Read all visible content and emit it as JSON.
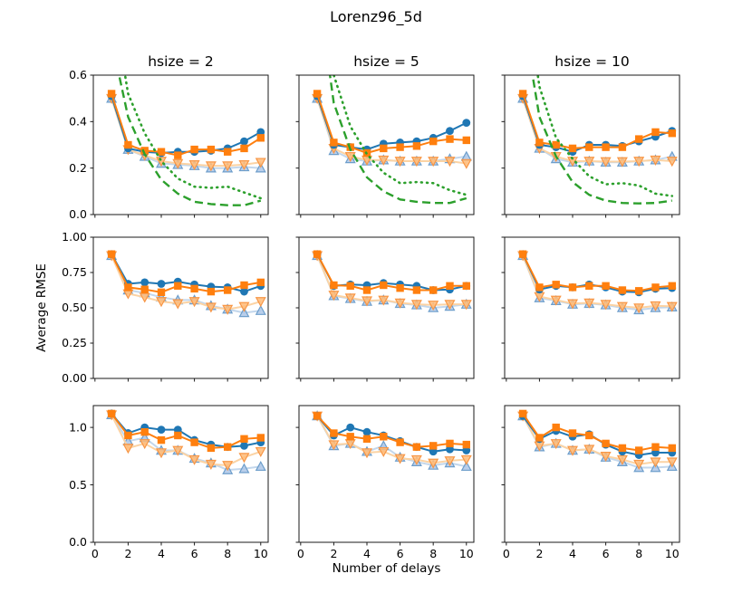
{
  "figure": {
    "title": "Lorenz96_5d"
  },
  "chart_data": {
    "type": "line",
    "title": "Lorenz96_5d",
    "xlabel": "Number of delays",
    "ylabel": "Average RMSE",
    "grid": false,
    "legend": "none",
    "layout": "3x3 subplot grid; columns share x axis (ticks labeled on bottom row only); rows share y axis (ticks labeled on left column only)",
    "col_titles": [
      "hsize = 2",
      "hsize = 5",
      "hsize = 10"
    ],
    "x": [
      1,
      2,
      3,
      4,
      5,
      6,
      7,
      8,
      9,
      10
    ],
    "xlim": [
      -0.1,
      10.45
    ],
    "xticks": [
      0,
      2,
      4,
      6,
      8,
      10
    ],
    "xtick_labels": [
      "0",
      "2",
      "4",
      "6",
      "8",
      "10"
    ],
    "rows": [
      {
        "ylim": [
          0,
          0.6
        ],
        "yticks": [
          0,
          0.2,
          0.4,
          0.6
        ],
        "ytick_labels": [
          "0.0",
          "0.2",
          "0.4",
          "0.6"
        ]
      },
      {
        "ylim": [
          0,
          1.0
        ],
        "yticks": [
          0,
          0.25,
          0.5,
          0.75,
          1.0
        ],
        "ytick_labels": [
          "0.00",
          "0.25",
          "0.50",
          "0.75",
          "1.00"
        ]
      },
      {
        "ylim": [
          0,
          1.19
        ],
        "yticks": [
          0,
          0.5,
          1.0
        ],
        "ytick_labels": [
          "0.0",
          "0.5",
          "1.0"
        ]
      }
    ],
    "series_styles": {
      "blue_circles": {
        "color": "#1f77b4",
        "marker": "circle",
        "line": "solid"
      },
      "orange_squares": {
        "color": "#ff7f0e",
        "marker": "square",
        "line": "solid"
      },
      "lightblue_triangles_up": {
        "color": "#c3d7ec",
        "marker": "triangle-up",
        "marker_fill": "#aec7e8",
        "marker_edge": "#6d9ecb",
        "line": "solid"
      },
      "lightorange_triangles_down": {
        "color": "#fbd3a4",
        "marker": "triangle-down",
        "marker_fill": "#ffbb78",
        "marker_edge": "#f79646",
        "line": "solid"
      },
      "green_dashed": {
        "color": "#2ca02c",
        "marker": "none",
        "line": "dashed"
      },
      "green_dotted": {
        "color": "#2ca02c",
        "marker": "none",
        "line": "dotted"
      }
    },
    "subplots": [
      [
        {
          "row_label": "row1",
          "col_label": "hsize = 2",
          "series": {
            "blue_circles": [
              0.51,
              0.285,
              0.27,
              0.265,
              0.27,
              0.27,
              0.275,
              0.285,
              0.315,
              0.355
            ],
            "orange_squares": [
              0.52,
              0.3,
              0.275,
              0.27,
              0.255,
              0.28,
              0.28,
              0.27,
              0.285,
              0.33
            ],
            "lightblue_triangles_up": [
              0.5,
              0.28,
              0.25,
              0.22,
              0.215,
              0.21,
              0.2,
              0.2,
              0.205,
              0.2
            ],
            "lightorange_triangles_down": [
              0.5,
              0.28,
              0.255,
              0.23,
              0.22,
              0.215,
              0.21,
              0.21,
              0.215,
              0.225
            ],
            "green_dashed": [
              0.75,
              0.42,
              0.26,
              0.15,
              0.09,
              0.055,
              0.045,
              0.04,
              0.04,
              0.06
            ],
            "green_dotted": [
              0.95,
              0.52,
              0.35,
              0.23,
              0.155,
              0.12,
              0.115,
              0.12,
              0.095,
              0.07
            ]
          }
        },
        {
          "row_label": "row1",
          "col_label": "hsize = 5",
          "series": {
            "blue_circles": [
              0.51,
              0.3,
              0.29,
              0.28,
              0.305,
              0.31,
              0.315,
              0.33,
              0.36,
              0.395
            ],
            "orange_squares": [
              0.52,
              0.31,
              0.29,
              0.265,
              0.285,
              0.29,
              0.295,
              0.315,
              0.325,
              0.32
            ],
            "lightblue_triangles_up": [
              0.5,
              0.275,
              0.24,
              0.23,
              0.235,
              0.23,
              0.23,
              0.23,
              0.24,
              0.25
            ],
            "lightorange_triangles_down": [
              0.5,
              0.285,
              0.25,
              0.235,
              0.235,
              0.23,
              0.23,
              0.23,
              0.23,
              0.22
            ],
            "green_dashed": [
              1.0,
              0.48,
              0.28,
              0.16,
              0.1,
              0.065,
              0.055,
              0.05,
              0.05,
              0.07
            ],
            "green_dotted": [
              1.15,
              0.6,
              0.38,
              0.26,
              0.18,
              0.135,
              0.14,
              0.135,
              0.105,
              0.085
            ]
          }
        },
        {
          "row_label": "row1",
          "col_label": "hsize = 10",
          "series": {
            "blue_circles": [
              0.51,
              0.3,
              0.29,
              0.27,
              0.3,
              0.3,
              0.295,
              0.315,
              0.335,
              0.36
            ],
            "orange_squares": [
              0.52,
              0.31,
              0.3,
              0.285,
              0.29,
              0.29,
              0.29,
              0.325,
              0.355,
              0.35
            ],
            "lightblue_triangles_up": [
              0.5,
              0.285,
              0.24,
              0.225,
              0.23,
              0.225,
              0.225,
              0.23,
              0.235,
              0.25
            ],
            "lightorange_triangles_down": [
              0.5,
              0.285,
              0.25,
              0.23,
              0.23,
              0.228,
              0.228,
              0.23,
              0.235,
              0.23
            ],
            "green_dashed": [
              0.85,
              0.42,
              0.25,
              0.14,
              0.085,
              0.06,
              0.05,
              0.048,
              0.05,
              0.06
            ],
            "green_dotted": [
              1.05,
              0.55,
              0.33,
              0.24,
              0.165,
              0.13,
              0.135,
              0.125,
              0.09,
              0.08
            ]
          }
        }
      ],
      [
        {
          "row_label": "row2",
          "col_label": "hsize = 2",
          "series": {
            "blue_circles": [
              0.88,
              0.67,
              0.68,
              0.67,
              0.685,
              0.665,
              0.65,
              0.645,
              0.615,
              0.655
            ],
            "orange_squares": [
              0.88,
              0.645,
              0.63,
              0.61,
              0.655,
              0.635,
              0.615,
              0.625,
              0.66,
              0.68
            ],
            "lightblue_triangles_up": [
              0.87,
              0.625,
              0.605,
              0.575,
              0.555,
              0.555,
              0.515,
              0.49,
              0.465,
              0.48
            ],
            "lightorange_triangles_down": [
              0.87,
              0.6,
              0.575,
              0.545,
              0.53,
              0.545,
              0.505,
              0.49,
              0.51,
              0.545
            ]
          }
        },
        {
          "row_label": "row2",
          "col_label": "hsize = 5",
          "series": {
            "blue_circles": [
              0.88,
              0.655,
              0.665,
              0.66,
              0.675,
              0.665,
              0.655,
              0.625,
              0.63,
              0.655
            ],
            "orange_squares": [
              0.88,
              0.66,
              0.655,
              0.625,
              0.66,
              0.64,
              0.625,
              0.625,
              0.655,
              0.655
            ],
            "lightblue_triangles_up": [
              0.87,
              0.585,
              0.565,
              0.545,
              0.555,
              0.53,
              0.52,
              0.5,
              0.51,
              0.525
            ],
            "lightorange_triangles_down": [
              0.87,
              0.59,
              0.57,
              0.55,
              0.555,
              0.535,
              0.525,
              0.52,
              0.525,
              0.525
            ]
          }
        },
        {
          "row_label": "row2",
          "col_label": "hsize = 10",
          "series": {
            "blue_circles": [
              0.88,
              0.63,
              0.655,
              0.645,
              0.665,
              0.645,
              0.615,
              0.61,
              0.635,
              0.64
            ],
            "orange_squares": [
              0.88,
              0.645,
              0.665,
              0.645,
              0.655,
              0.655,
              0.625,
              0.62,
              0.645,
              0.655
            ],
            "lightblue_triangles_up": [
              0.87,
              0.57,
              0.55,
              0.525,
              0.53,
              0.52,
              0.5,
              0.485,
              0.5,
              0.505
            ],
            "lightorange_triangles_down": [
              0.87,
              0.58,
              0.555,
              0.53,
              0.535,
              0.525,
              0.51,
              0.5,
              0.515,
              0.51
            ]
          }
        }
      ],
      [
        {
          "row_label": "row3",
          "col_label": "hsize = 2",
          "series": {
            "blue_circles": [
              1.12,
              0.95,
              1.0,
              0.98,
              0.98,
              0.89,
              0.85,
              0.83,
              0.84,
              0.87
            ],
            "orange_squares": [
              1.12,
              0.93,
              0.96,
              0.89,
              0.93,
              0.87,
              0.82,
              0.83,
              0.9,
              0.91
            ],
            "lightblue_triangles_up": [
              1.11,
              0.88,
              0.91,
              0.8,
              0.8,
              0.73,
              0.69,
              0.63,
              0.64,
              0.66
            ],
            "lightorange_triangles_down": [
              1.11,
              0.82,
              0.86,
              0.78,
              0.8,
              0.72,
              0.68,
              0.67,
              0.74,
              0.79
            ]
          }
        },
        {
          "row_label": "row3",
          "col_label": "hsize = 5",
          "series": {
            "blue_circles": [
              1.1,
              0.93,
              1.0,
              0.96,
              0.93,
              0.88,
              0.83,
              0.79,
              0.81,
              0.8
            ],
            "orange_squares": [
              1.1,
              0.95,
              0.92,
              0.9,
              0.92,
              0.87,
              0.83,
              0.84,
              0.86,
              0.85
            ],
            "lightblue_triangles_up": [
              1.1,
              0.84,
              0.86,
              0.79,
              0.84,
              0.74,
              0.7,
              0.67,
              0.69,
              0.66
            ],
            "lightorange_triangles_down": [
              1.1,
              0.85,
              0.86,
              0.78,
              0.79,
              0.73,
              0.72,
              0.69,
              0.71,
              0.72
            ]
          }
        },
        {
          "row_label": "row3",
          "col_label": "hsize = 10",
          "series": {
            "blue_circles": [
              1.1,
              0.9,
              0.97,
              0.92,
              0.94,
              0.85,
              0.79,
              0.76,
              0.78,
              0.78
            ],
            "orange_squares": [
              1.12,
              0.91,
              1.0,
              0.95,
              0.93,
              0.86,
              0.82,
              0.8,
              0.83,
              0.82
            ],
            "lightblue_triangles_up": [
              1.1,
              0.83,
              0.86,
              0.8,
              0.81,
              0.74,
              0.7,
              0.65,
              0.65,
              0.66
            ],
            "lightorange_triangles_down": [
              1.1,
              0.84,
              0.86,
              0.8,
              0.81,
              0.75,
              0.72,
              0.68,
              0.7,
              0.7
            ]
          }
        }
      ]
    ]
  }
}
